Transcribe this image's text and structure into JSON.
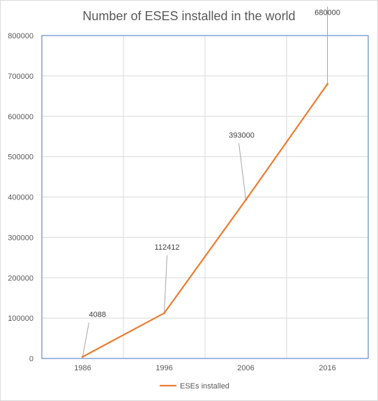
{
  "chart_data": {
    "type": "line",
    "title": "Number of ESES installed in the world",
    "xlabel": "",
    "ylabel": "",
    "categories": [
      "1986",
      "1996",
      "2006",
      "2016"
    ],
    "series": [
      {
        "name": "ESEs installed",
        "values": [
          4088,
          112412,
          393000,
          680000
        ],
        "data_labels": [
          "4088",
          "112412",
          "393000",
          "680000"
        ],
        "color": "#ED7D31"
      }
    ],
    "ylim": [
      0,
      800000
    ],
    "yticks": [
      "0",
      "100000",
      "200000",
      "300000",
      "400000",
      "500000",
      "600000",
      "700000",
      "800000"
    ],
    "grid": true,
    "legend": "bottom",
    "colors": {
      "grid": "#d9d9d9",
      "plot_border": "#4472C4",
      "axis_text": "#595959",
      "leader": "#a6a6a6"
    }
  }
}
